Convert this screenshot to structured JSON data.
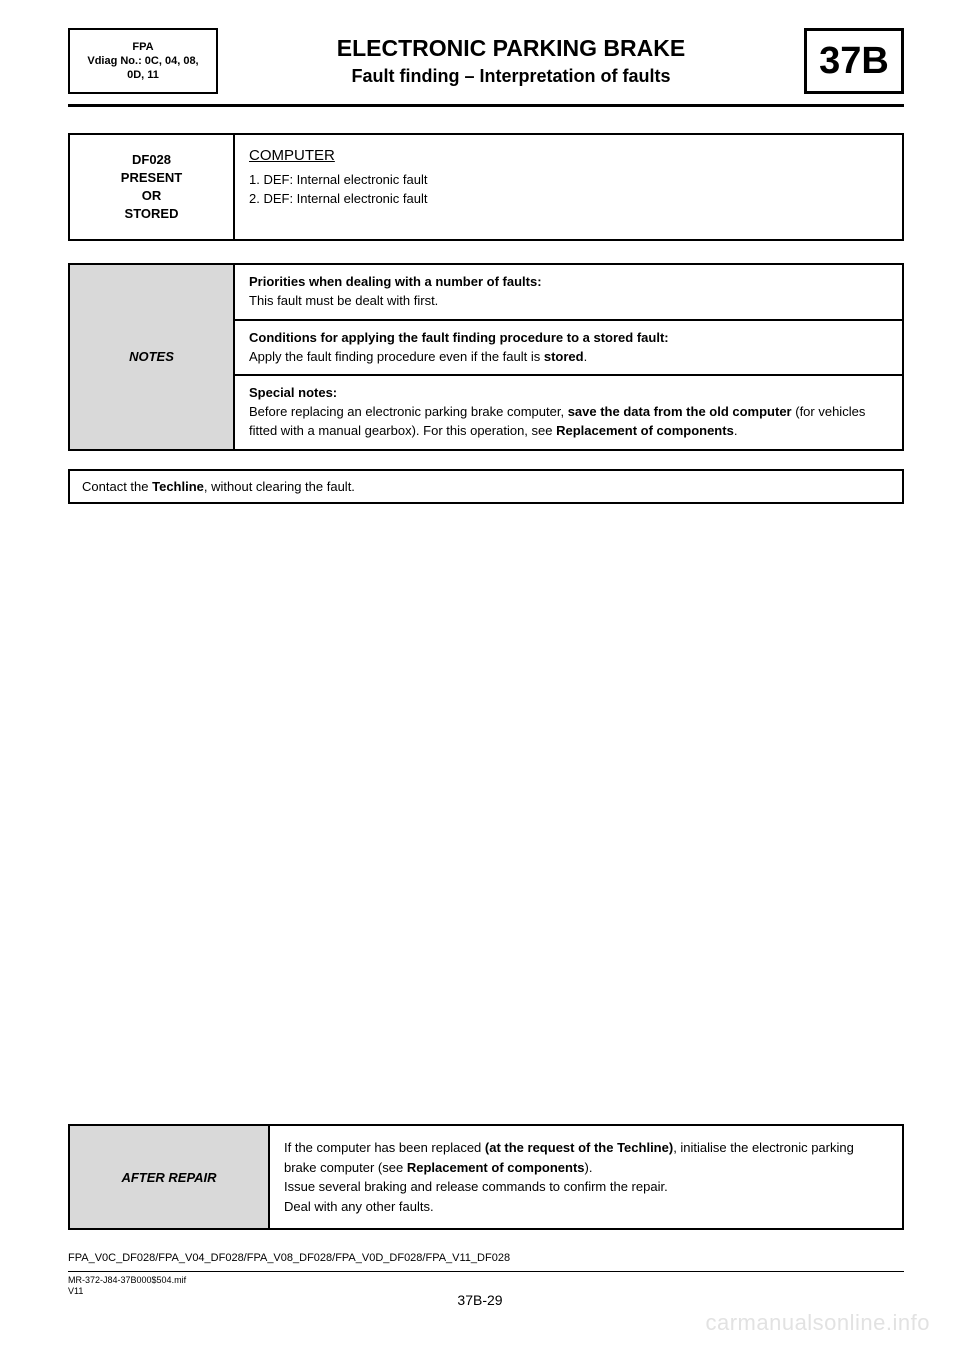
{
  "header": {
    "left_line1": "FPA",
    "left_line2": "Vdiag No.: 0C, 04, 08,",
    "left_line3": "0D, 11",
    "title": "ELECTRONIC PARKING BRAKE",
    "subtitle": "Fault finding – Interpretation of faults",
    "section": "37B"
  },
  "fault": {
    "code": "DF028",
    "status1": "PRESENT",
    "status2": "OR",
    "status3": "STORED",
    "heading": "COMPUTER",
    "def1": "1. DEF: Internal electronic fault",
    "def2": "2. DEF: Internal electronic fault"
  },
  "notes": {
    "label": "NOTES",
    "row1_head": "Priorities when dealing with a number of faults:",
    "row1_body": "This fault must be dealt with first.",
    "row2_head": "Conditions for applying the fault finding procedure to a stored fault:",
    "row2_body_a": "Apply the fault finding procedure even if the fault is ",
    "row2_body_b": "stored",
    "row2_body_c": ".",
    "row3_head": "Special notes:",
    "row3_a": "Before replacing an electronic parking brake computer, ",
    "row3_b": "save the data from the old computer",
    "row3_c": " (for vehicles fitted with a manual gearbox). For this operation, see ",
    "row3_d": "Replacement of components",
    "row3_e": "."
  },
  "instruction": {
    "a": "Contact the ",
    "b": "Techline",
    "c": ", without clearing the fault."
  },
  "after": {
    "label": "AFTER REPAIR",
    "l1a": "If the computer has been replaced ",
    "l1b": "(at the request of the Techline)",
    "l1c": ", initialise the electronic parking brake computer (see ",
    "l1d": "Replacement of components",
    "l1e": ").",
    "l2": "Issue several braking and release commands to confirm the repair.",
    "l3": "Deal with any other faults."
  },
  "footer": {
    "code": "FPA_V0C_DF028/FPA_V04_DF028/FPA_V08_DF028/FPA_V0D_DF028/FPA_V11_DF028",
    "ref1": "MR-372-J84-37B000$504.mif",
    "ref2": "V11",
    "page": "37B-29",
    "watermark": "carmanualsonline.info"
  },
  "colors": {
    "grey": "#d9d9d9",
    "watermark": "#e2e2e2",
    "text": "#000000",
    "bg": "#ffffff"
  }
}
